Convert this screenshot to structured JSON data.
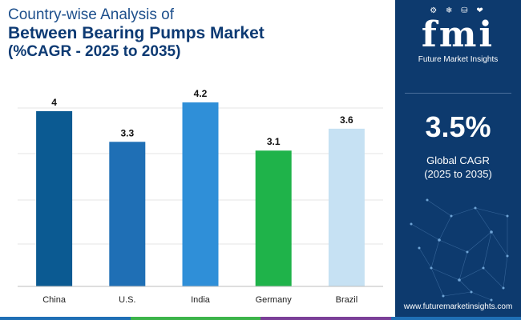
{
  "title": {
    "line1": "Country-wise Analysis of",
    "line2": "Between Bearing Pumps Market",
    "line3": "(%CAGR - 2025 to 2035)"
  },
  "chart_data": {
    "type": "bar",
    "title": "Country-wise Analysis of Between Bearing Pumps Market (%CAGR - 2025 to 2035)",
    "categories": [
      "China",
      "U.S.",
      "India",
      "Germany",
      "Brazil"
    ],
    "values": [
      4,
      3.3,
      4.2,
      3.1,
      3.6
    ],
    "value_labels": [
      "4",
      "3.3",
      "4.2",
      "3.1",
      "3.6"
    ],
    "colors": [
      "#0b5a92",
      "#1f6fb5",
      "#2f8fd8",
      "#1fb34a",
      "#c6e1f3"
    ],
    "xlabel": "",
    "ylabel": "",
    "ylim": [
      0,
      4.2
    ],
    "grid": true,
    "legend": "none"
  },
  "sidebar": {
    "logo_text": "fmi",
    "logo_icons": "⚙ ❄ ⛁ ❤",
    "logo_sub": "Future Market Insights",
    "stat_value": "3.5%",
    "stat_label_line1": "Global CAGR",
    "stat_label_line2": "(2025 to 2035)",
    "url": "www.futuremarketinsights.com"
  },
  "bottom_bar_colors": [
    "#1f6fb5",
    "#3cb44a",
    "#7b3f98",
    "#1f6fb5"
  ]
}
